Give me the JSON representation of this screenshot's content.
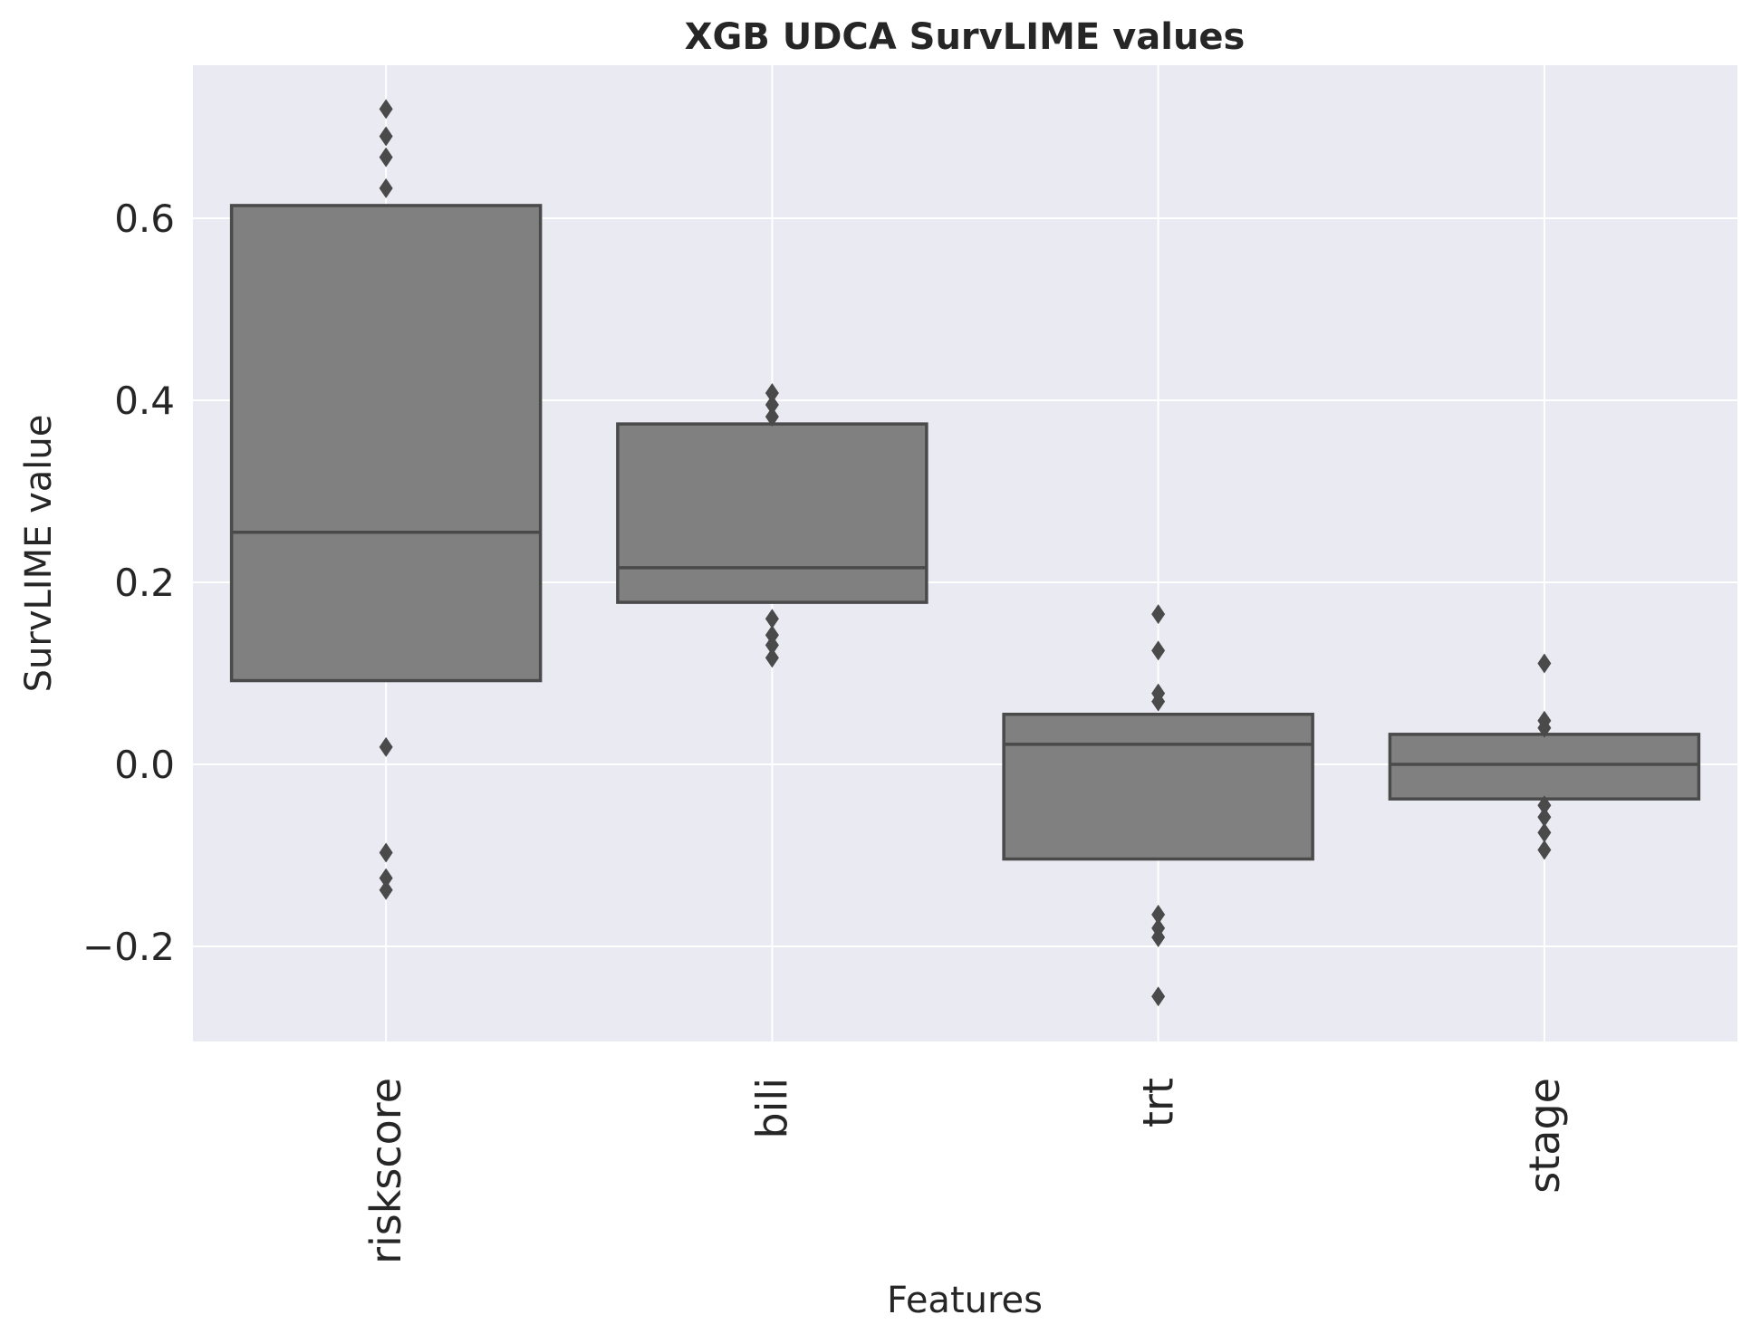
{
  "chart_data": {
    "type": "boxplot",
    "title": "XGB UDCA SurvLIME values",
    "xlabel": "Features",
    "ylabel": "SurvLIME value",
    "ylim": [
      -0.3,
      0.77
    ],
    "yticks": [
      -0.2,
      0.0,
      0.2,
      0.4,
      0.6
    ],
    "ytick_labels": [
      "−0.2",
      "0.0",
      "0.2",
      "0.4",
      "0.6"
    ],
    "categories": [
      "riskscore",
      "bili",
      "trt",
      "stage"
    ],
    "grid": true,
    "colors": {
      "background": "#eaeaf2",
      "grid": "#ffffff",
      "box_fill": "#808080",
      "box_edge": "#4a4a4a",
      "text": "#262626"
    },
    "boxes": [
      {
        "category": "riskscore",
        "q1": 0.092,
        "median": 0.255,
        "q3": 0.614,
        "outliers": [
          0.72,
          0.69,
          0.667,
          0.633,
          0.019,
          -0.097,
          -0.125,
          -0.138
        ]
      },
      {
        "category": "bili",
        "q1": 0.178,
        "median": 0.216,
        "q3": 0.374,
        "outliers": [
          0.408,
          0.395,
          0.382,
          0.16,
          0.142,
          0.131,
          0.117
        ]
      },
      {
        "category": "trt",
        "q1": -0.104,
        "median": 0.022,
        "q3": 0.055,
        "outliers": [
          0.165,
          0.125,
          0.078,
          0.069,
          -0.165,
          -0.18,
          -0.19,
          -0.255
        ]
      },
      {
        "category": "stage",
        "q1": -0.038,
        "median": 0.0,
        "q3": 0.033,
        "outliers": [
          0.111,
          0.048,
          0.04,
          -0.045,
          -0.058,
          -0.075,
          -0.094
        ]
      }
    ]
  }
}
